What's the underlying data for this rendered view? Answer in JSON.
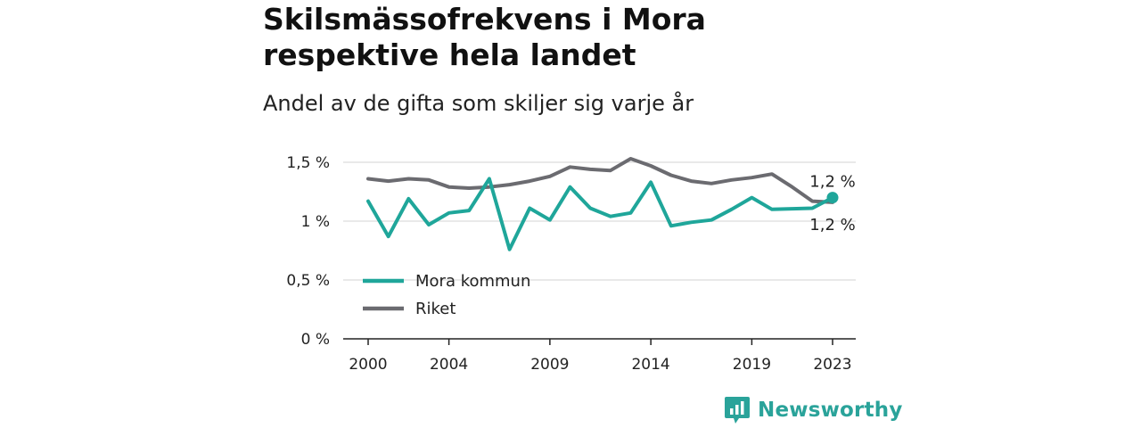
{
  "chart_data": {
    "type": "line",
    "title": "Skilsmässofrekvens i Mora respektive hela landet",
    "subtitle": "Andel av de gifta som skiljer sig varje år",
    "x": [
      2000,
      2001,
      2002,
      2003,
      2004,
      2005,
      2006,
      2007,
      2008,
      2009,
      2010,
      2011,
      2012,
      2013,
      2014,
      2015,
      2016,
      2017,
      2018,
      2019,
      2020,
      2021,
      2022,
      2023
    ],
    "series": [
      {
        "name": "Mora kommun",
        "color": "#1fa69a",
        "values": [
          1.17,
          0.87,
          1.19,
          0.97,
          1.07,
          1.09,
          1.36,
          0.76,
          1.11,
          1.01,
          1.29,
          1.11,
          1.04,
          1.07,
          1.33,
          0.96,
          0.99,
          1.01,
          1.1,
          1.2,
          1.1,
          1.105,
          1.11,
          1.2
        ]
      },
      {
        "name": "Riket",
        "color": "#6b6b70",
        "values": [
          1.36,
          1.34,
          1.36,
          1.35,
          1.29,
          1.28,
          1.29,
          1.31,
          1.34,
          1.38,
          1.46,
          1.44,
          1.43,
          1.53,
          1.47,
          1.39,
          1.34,
          1.32,
          1.35,
          1.37,
          1.4,
          1.29,
          1.17,
          1.16
        ]
      }
    ],
    "y_ticks": [
      {
        "value": 0,
        "label": "0 %"
      },
      {
        "value": 0.5,
        "label": "0,5 %"
      },
      {
        "value": 1,
        "label": "1 %"
      },
      {
        "value": 1.5,
        "label": "1,5 %"
      }
    ],
    "x_ticks": [
      2000,
      2004,
      2009,
      2014,
      2019,
      2023
    ],
    "ylim": [
      0,
      1.55
    ],
    "xlim": [
      2000,
      2023
    ],
    "grid": true,
    "legend_position": "bottom-left",
    "end_labels": {
      "Mora kommun": "1,2 %",
      "Riket": "1,2 %"
    }
  },
  "brand": {
    "name": "Newsworthy",
    "color": "#2aa39a"
  }
}
